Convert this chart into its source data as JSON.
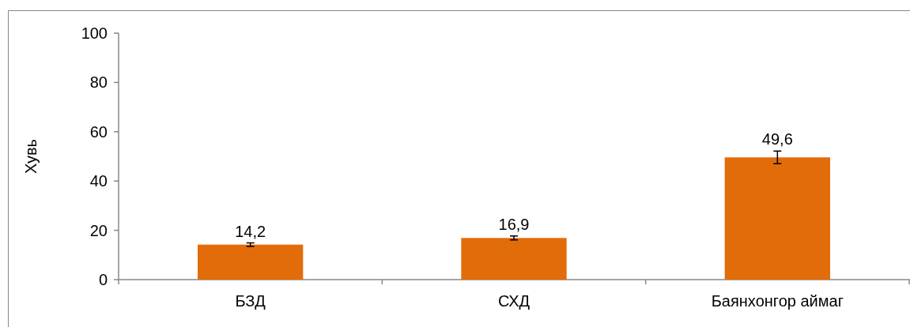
{
  "chart_data": {
    "type": "bar",
    "ylabel": "Хувь",
    "categories": [
      "БЗД",
      "СХД",
      "Баянхонгор аймаг"
    ],
    "values": [
      14.2,
      16.9,
      49.6
    ],
    "errors": [
      0.7,
      0.8,
      2.6
    ],
    "color": "#e36c0a",
    "value_labels": [
      "14,2",
      "16,9",
      "49,6"
    ],
    "ylim": [
      0,
      100
    ],
    "yticks": [
      0,
      20,
      40,
      60,
      80,
      100
    ],
    "grid": false
  }
}
